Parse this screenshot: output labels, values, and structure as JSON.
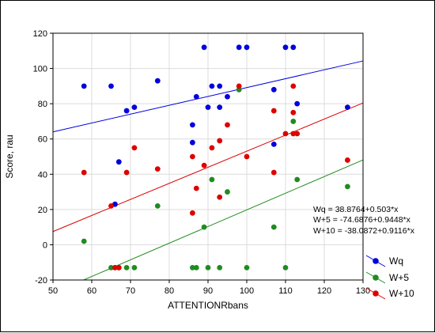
{
  "chart_data": {
    "type": "scatter",
    "xlabel": "ATTENTIONRbans",
    "ylabel": "Score, rau",
    "xlim": [
      50,
      130
    ],
    "ylim": [
      -20,
      120
    ],
    "xticks": [
      50,
      60,
      70,
      80,
      90,
      100,
      110,
      120,
      130
    ],
    "yticks": [
      -20,
      0,
      20,
      40,
      60,
      80,
      100,
      120
    ],
    "grid": true,
    "legend_position": "bottom-right",
    "equations": [
      "Wq = 38.8764+0.503*x",
      "W+5 = -74.6876+0.9448*x",
      "W+10 = -38.0872+0.9116*x"
    ],
    "series": [
      {
        "name": "Wq",
        "color": "#0000dd",
        "fit": {
          "intercept": 38.8764,
          "slope": 0.503
        },
        "points": [
          [
            58,
            90
          ],
          [
            65,
            90
          ],
          [
            66,
            23
          ],
          [
            67,
            47
          ],
          [
            69,
            76
          ],
          [
            71,
            78
          ],
          [
            77,
            93
          ],
          [
            86,
            58
          ],
          [
            86,
            68
          ],
          [
            87,
            84
          ],
          [
            89,
            112
          ],
          [
            90,
            78
          ],
          [
            91,
            90
          ],
          [
            93,
            90
          ],
          [
            93,
            78
          ],
          [
            95,
            84
          ],
          [
            98,
            112
          ],
          [
            100,
            112
          ],
          [
            107,
            88
          ],
          [
            107,
            57
          ],
          [
            110,
            112
          ],
          [
            112,
            112
          ],
          [
            113,
            80
          ],
          [
            126,
            78
          ]
        ]
      },
      {
        "name": "W+5",
        "color": "#1f8c1f",
        "fit": {
          "intercept": -74.6876,
          "slope": 0.9448
        },
        "points": [
          [
            58,
            2
          ],
          [
            65,
            -13
          ],
          [
            66,
            -13
          ],
          [
            67,
            -13
          ],
          [
            69,
            -13
          ],
          [
            71,
            -13
          ],
          [
            77,
            22
          ],
          [
            86,
            -13
          ],
          [
            87,
            -13
          ],
          [
            89,
            10
          ],
          [
            90,
            -13
          ],
          [
            91,
            37
          ],
          [
            93,
            -13
          ],
          [
            95,
            30
          ],
          [
            98,
            88
          ],
          [
            100,
            -13
          ],
          [
            107,
            10
          ],
          [
            110,
            -13
          ],
          [
            112,
            70
          ],
          [
            113,
            37
          ],
          [
            126,
            33
          ]
        ]
      },
      {
        "name": "W+10",
        "color": "#dd0000",
        "fit": {
          "intercept": -38.0872,
          "slope": 0.9116
        },
        "points": [
          [
            58,
            41
          ],
          [
            65,
            22
          ],
          [
            66,
            -13
          ],
          [
            67,
            -13
          ],
          [
            69,
            41
          ],
          [
            71,
            55
          ],
          [
            77,
            43
          ],
          [
            86,
            50
          ],
          [
            86,
            18
          ],
          [
            87,
            32
          ],
          [
            89,
            45
          ],
          [
            91,
            55
          ],
          [
            93,
            59
          ],
          [
            93,
            27
          ],
          [
            95,
            68
          ],
          [
            98,
            90
          ],
          [
            100,
            50
          ],
          [
            107,
            76
          ],
          [
            107,
            41
          ],
          [
            110,
            63
          ],
          [
            112,
            90
          ],
          [
            112,
            75
          ],
          [
            112,
            63
          ],
          [
            113,
            63
          ],
          [
            126,
            48
          ]
        ]
      }
    ]
  }
}
